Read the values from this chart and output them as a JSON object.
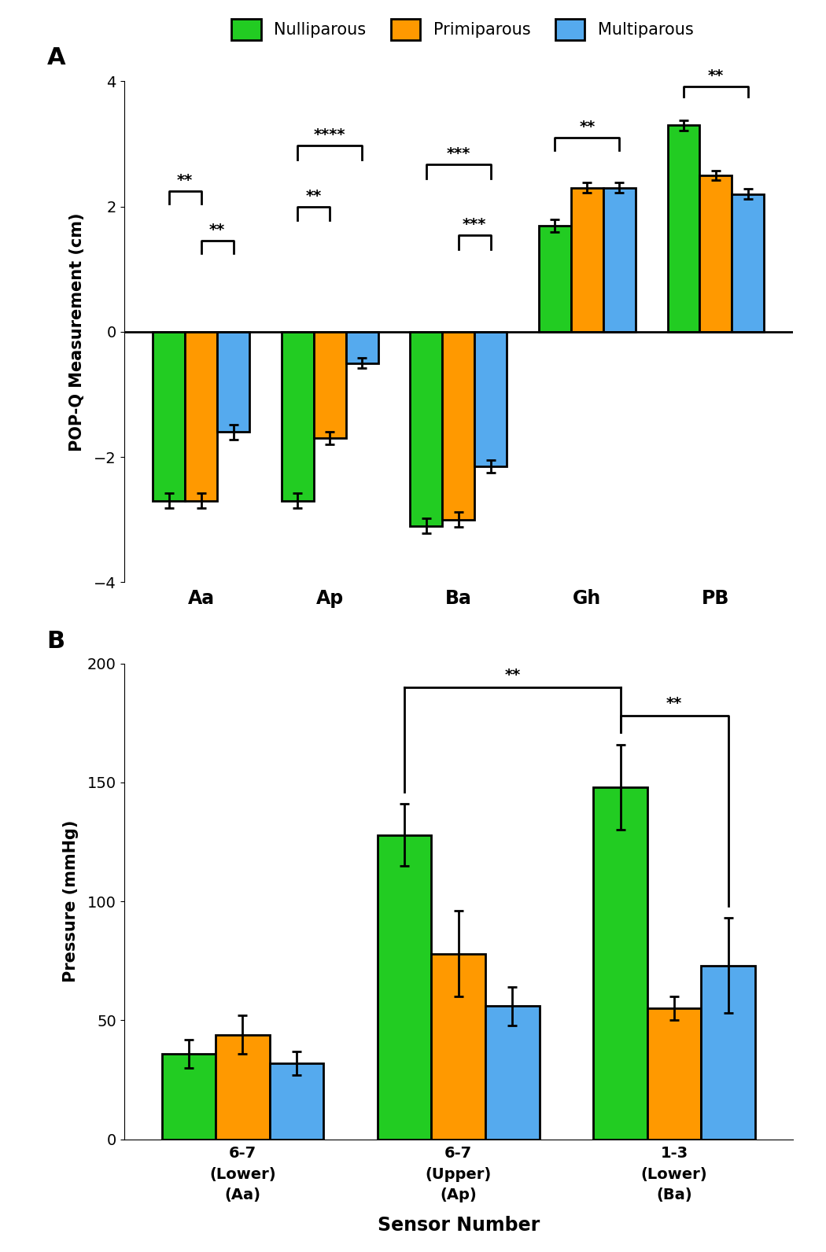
{
  "panel_a": {
    "groups": [
      "Aa",
      "Ap",
      "Ba",
      "Gh",
      "PB"
    ],
    "nulliparous": [
      -2.7,
      -2.7,
      -3.1,
      1.7,
      3.3
    ],
    "primiparous": [
      -2.7,
      -1.7,
      -3.0,
      2.3,
      2.5
    ],
    "multiparous": [
      -1.6,
      -0.5,
      -2.15,
      2.3,
      2.2
    ],
    "null_err": [
      0.12,
      0.12,
      0.12,
      0.1,
      0.08
    ],
    "prim_err": [
      0.12,
      0.1,
      0.12,
      0.08,
      0.08
    ],
    "mult_err": [
      0.12,
      0.08,
      0.1,
      0.08,
      0.08
    ],
    "ylim": [
      -4,
      4
    ],
    "ylabel": "POP-Q Measurement (cm)",
    "yticks": [
      -4,
      -2,
      0,
      2,
      4
    ]
  },
  "panel_b": {
    "groups": [
      "6-7\n(Lower)\n(Aa)",
      "6-7\n(Upper)\n(Ap)",
      "1-3\n(Lower)\n(Ba)"
    ],
    "nulliparous": [
      36,
      128,
      148
    ],
    "primiparous": [
      44,
      78,
      55
    ],
    "multiparous": [
      32,
      56,
      73
    ],
    "null_err": [
      6,
      13,
      18
    ],
    "prim_err": [
      8,
      18,
      5
    ],
    "mult_err": [
      5,
      8,
      20
    ],
    "ylim": [
      0,
      200
    ],
    "ylabel": "Pressure (mmHg)",
    "xlabel": "Sensor Number",
    "yticks": [
      0,
      50,
      100,
      150,
      200
    ]
  },
  "colors": {
    "nulliparous": "#22cc22",
    "primiparous": "#ff9900",
    "multiparous": "#55aaee"
  },
  "legend_labels": [
    "Nulliparous",
    "Primiparous",
    "Multiparous"
  ]
}
